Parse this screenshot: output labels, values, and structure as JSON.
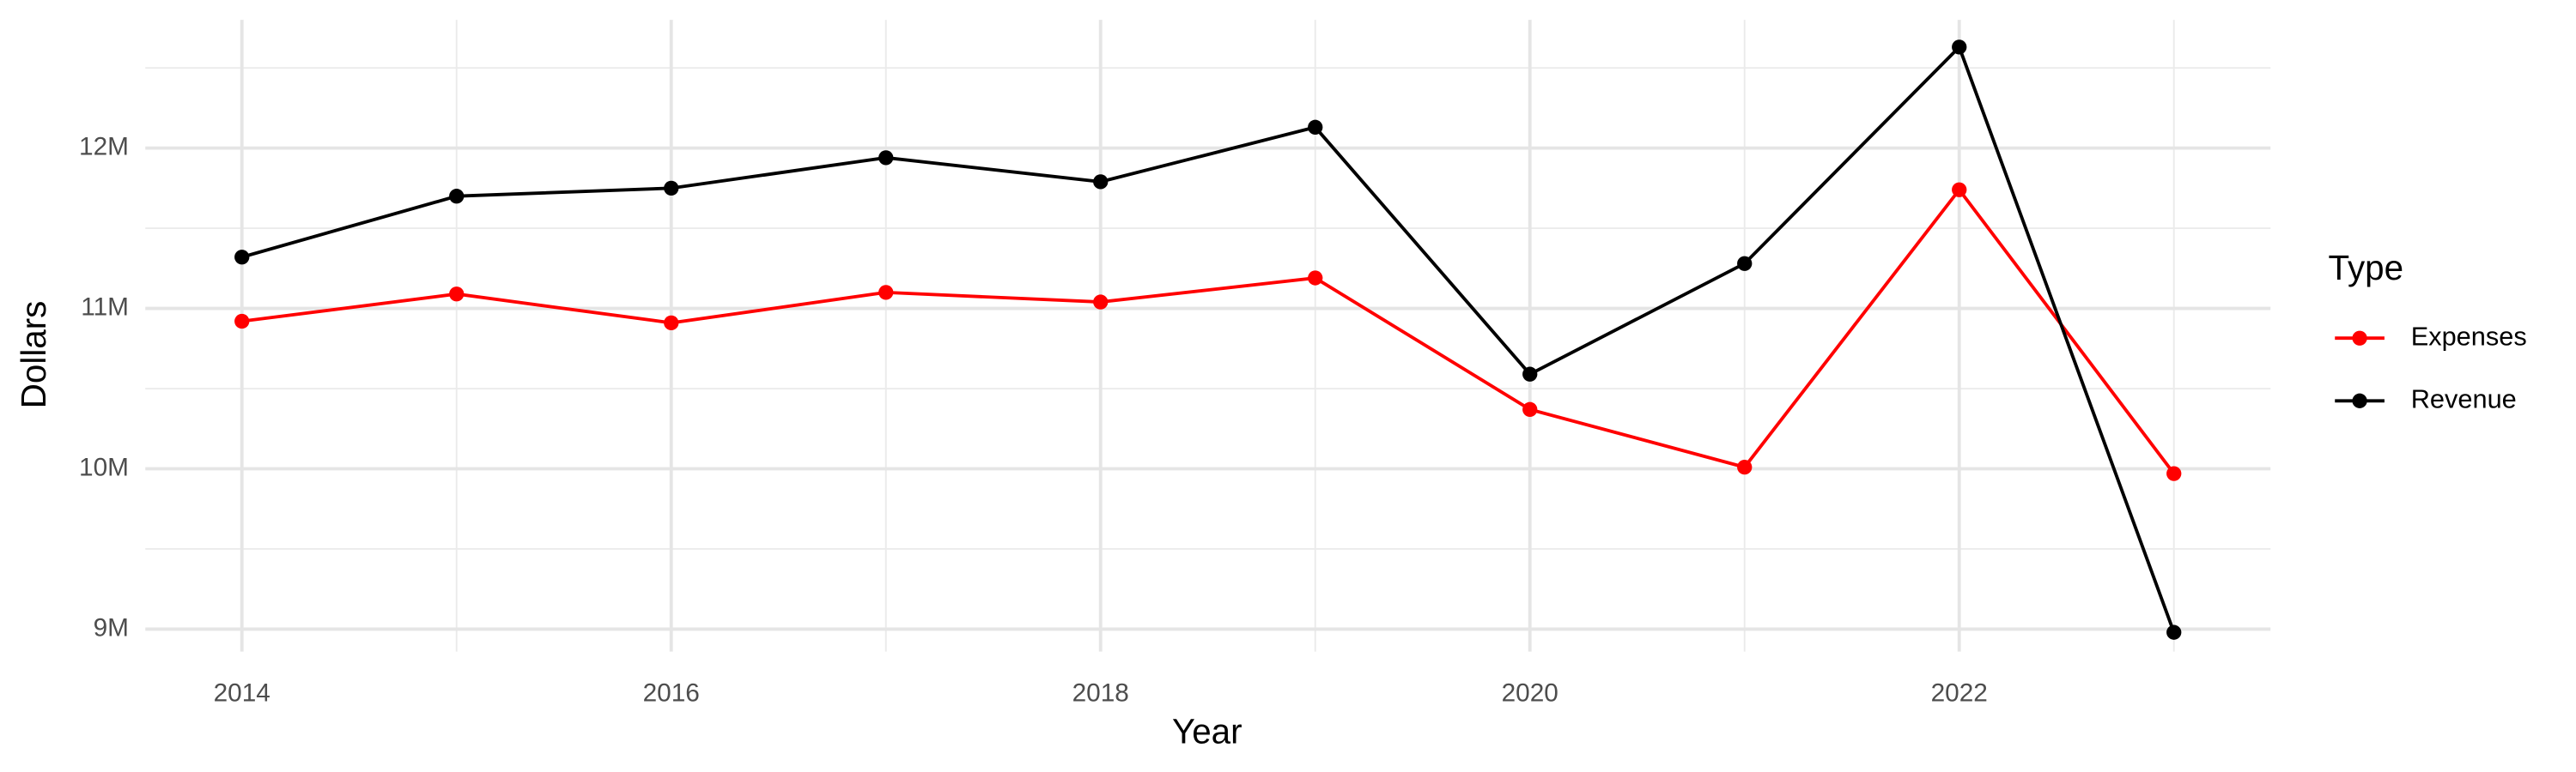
{
  "chart_data": {
    "type": "line",
    "x_label": "Year",
    "y_label": "Dollars",
    "x": [
      2014,
      2015,
      2016,
      2017,
      2018,
      2019,
      2020,
      2021,
      2022,
      2023
    ],
    "series": [
      {
        "name": "Expenses",
        "color": "#ff0000",
        "values": [
          10920000,
          11090000,
          10910000,
          11100000,
          11040000,
          11190000,
          10370000,
          10010000,
          11740000,
          9970000
        ]
      },
      {
        "name": "Revenue",
        "color": "#000000",
        "values": [
          11320000,
          11700000,
          11750000,
          11940000,
          11790000,
          12130000,
          10590000,
          11280000,
          12630000,
          8980000
        ]
      }
    ],
    "xlim": [
      2013.55,
      2023.45
    ],
    "xticks": [
      2014,
      2016,
      2018,
      2020,
      2022
    ],
    "ylim": [
      8860000,
      12800000
    ],
    "yticks": [
      {
        "value": 9000000,
        "label": "9M"
      },
      {
        "value": 10000000,
        "label": "10M"
      },
      {
        "value": 11000000,
        "label": "11M"
      },
      {
        "value": 12000000,
        "label": "12M"
      }
    ],
    "grid": true,
    "legend_title": "Type",
    "legend": "right"
  }
}
